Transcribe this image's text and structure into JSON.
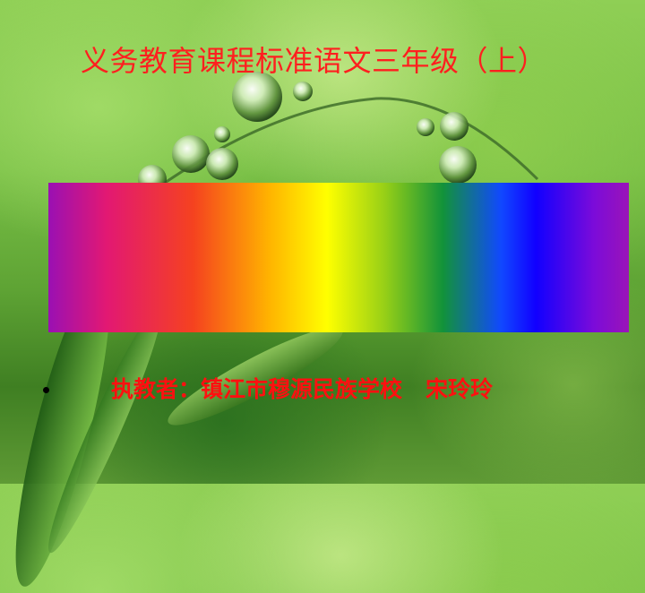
{
  "slide": {
    "title": "义务教育课程标准语文三年级（上）",
    "author_line": "执教者：镇江市穆源民族学校   宋玲玲"
  },
  "colors": {
    "title": "#ff1f1f",
    "author": "#ff1010",
    "background": "#79c046",
    "bullet": "#000000"
  },
  "icons": {
    "bullet": "bullet-dot-icon",
    "background_image": "water-droplets-on-grass-stem"
  }
}
